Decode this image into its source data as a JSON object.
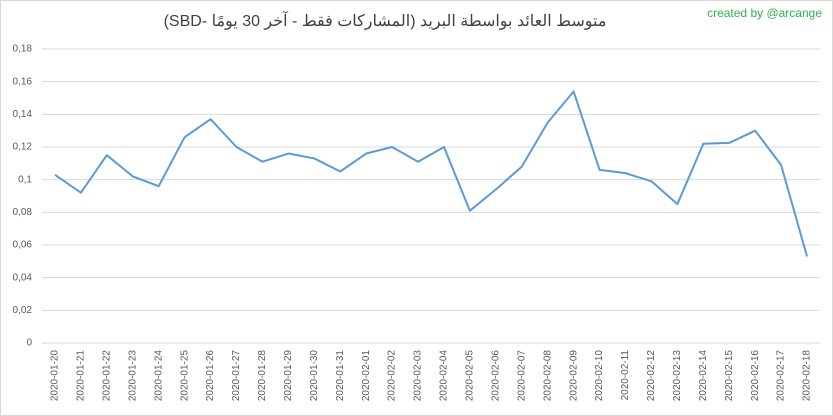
{
  "chart_data": {
    "type": "line",
    "title": "متوسط العائد بواسطة البريد (المشاركات فقط - آخر 30 يومًا -SBD)",
    "annotation": "created by @arcange",
    "categories": [
      "2020-01-20",
      "2020-01-21",
      "2020-01-22",
      "2020-01-23",
      "2020-01-24",
      "2020-01-25",
      "2020-01-26",
      "2020-01-27",
      "2020-01-28",
      "2020-01-29",
      "2020-01-30",
      "2020-01-31",
      "2020-02-01",
      "2020-02-02",
      "2020-02-03",
      "2020-02-04",
      "2020-02-05",
      "2020-02-06",
      "2020-02-07",
      "2020-02-08",
      "2020-02-09",
      "2020-02-10",
      "2020-02-11",
      "2020-02-12",
      "2020-02-13",
      "2020-02-14",
      "2020-02-15",
      "2020-02-16",
      "2020-02-17",
      "2020-02-18"
    ],
    "values": [
      0.103,
      0.092,
      0.115,
      0.102,
      0.096,
      0.126,
      0.137,
      0.12,
      0.111,
      0.116,
      0.113,
      0.105,
      0.116,
      0.12,
      0.111,
      0.12,
      0.081,
      0.094,
      0.108,
      0.135,
      0.154,
      0.106,
      0.104,
      0.099,
      0.085,
      0.122,
      0.1225,
      0.13,
      0.109,
      0.053
    ],
    "color": "#5b9bd5",
    "ylim": [
      0,
      0.18
    ],
    "yticks": [
      0,
      {
        "value": 0.02,
        "label": "0,02"
      },
      {
        "value": 0.04,
        "label": "0,04"
      },
      {
        "value": 0.06,
        "label": "0,06"
      },
      {
        "value": 0.08,
        "label": "0,08"
      },
      {
        "value": 0.1,
        "label": "0,1"
      },
      {
        "value": 0.12,
        "label": "0,12"
      },
      {
        "value": 0.14,
        "label": "0,14"
      },
      {
        "value": 0.16,
        "label": "0,16"
      },
      {
        "value": 0.18,
        "label": "0,18"
      }
    ],
    "grid": true
  }
}
